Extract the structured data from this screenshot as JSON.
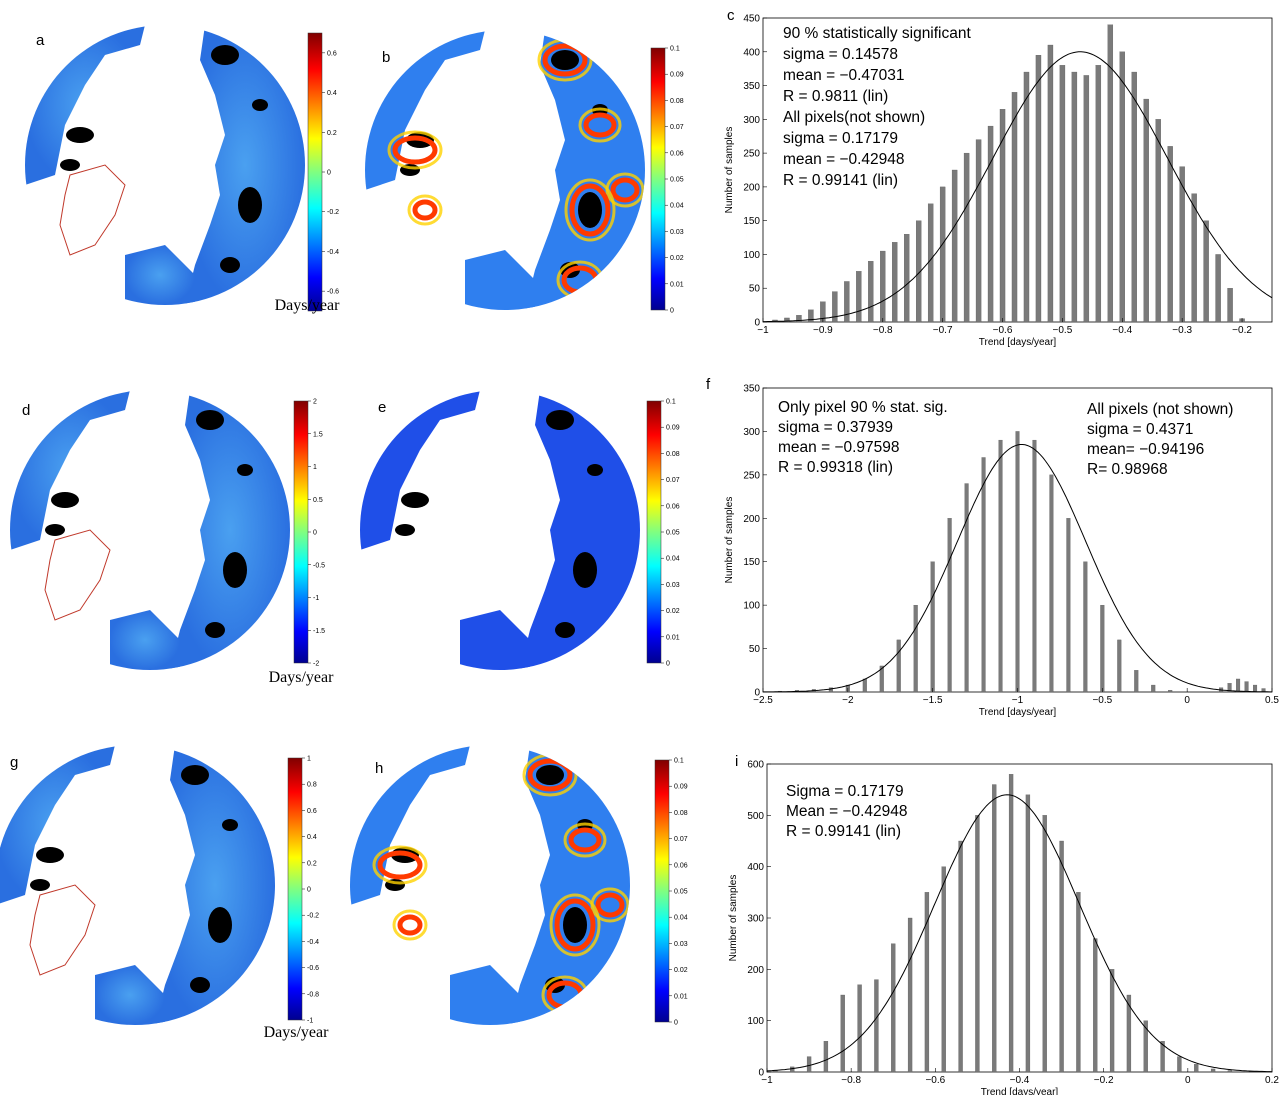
{
  "colors": {
    "bar": "#7a7a7a",
    "land": "#000000",
    "greenland_outline": "#c0392b",
    "ocean_blue": "#2a6fe0"
  },
  "panels": {
    "a": {
      "letter": "a",
      "cb_ticks": [
        "0.6",
        "0.4",
        "0.2",
        "0",
        "-0.2",
        "-0.4",
        "-0.6"
      ],
      "cb_range": [
        -0.7,
        0.7
      ],
      "unit": "Days/year"
    },
    "b": {
      "letter": "b",
      "cb_ticks": [
        "0.1",
        "0.09",
        "0.08",
        "0.07",
        "0.06",
        "0.05",
        "0.04",
        "0.03",
        "0.02",
        "0.01",
        "0"
      ],
      "cb_range": [
        0,
        0.1
      ]
    },
    "d": {
      "letter": "d",
      "cb_ticks": [
        "2",
        "1.5",
        "1",
        "0.5",
        "0",
        "-0.5",
        "-1",
        "-1.5",
        "-2"
      ],
      "cb_range": [
        -2,
        2
      ],
      "unit": "Days/year"
    },
    "e": {
      "letter": "e",
      "cb_ticks": [
        "0.1",
        "0.09",
        "0.08",
        "0.07",
        "0.06",
        "0.05",
        "0.04",
        "0.03",
        "0.02",
        "0.01",
        "0"
      ],
      "cb_range": [
        0,
        0.1
      ]
    },
    "g": {
      "letter": "g",
      "cb_ticks": [
        "1",
        "0.8",
        "0.6",
        "0.4",
        "0.2",
        "0",
        "-0.2",
        "-0.4",
        "-0.6",
        "-0.8",
        "-1"
      ],
      "cb_range": [
        -1,
        1
      ],
      "unit": "Days/year"
    },
    "h": {
      "letter": "h",
      "cb_ticks": [
        "0.1",
        "0.09",
        "0.08",
        "0.07",
        "0.06",
        "0.05",
        "0.04",
        "0.03",
        "0.02",
        "0.01",
        "0"
      ],
      "cb_range": [
        0,
        0.1
      ]
    }
  },
  "chart_data": [
    {
      "panel": "c",
      "type": "bar",
      "xlabel": "Trend [days/year]",
      "ylabel": "Number of samples",
      "xlim": [
        -1,
        -0.15
      ],
      "ylim": [
        0,
        450
      ],
      "xticks": [
        "-1",
        "-0.9",
        "-0.8",
        "-0.7",
        "-0.6",
        "-0.5",
        "-0.4",
        "-0.3",
        "-0.2"
      ],
      "yticks": [
        "0",
        "50",
        "100",
        "150",
        "200",
        "250",
        "300",
        "350",
        "400",
        "450"
      ],
      "bin_width": 0.0085,
      "x": [
        -0.98,
        -0.96,
        -0.94,
        -0.92,
        -0.9,
        -0.88,
        -0.86,
        -0.84,
        -0.82,
        -0.8,
        -0.78,
        -0.76,
        -0.74,
        -0.72,
        -0.7,
        -0.68,
        -0.66,
        -0.64,
        -0.62,
        -0.6,
        -0.58,
        -0.56,
        -0.54,
        -0.52,
        -0.5,
        -0.48,
        -0.46,
        -0.44,
        -0.42,
        -0.4,
        -0.38,
        -0.36,
        -0.34,
        -0.32,
        -0.3,
        -0.28,
        -0.26,
        -0.24,
        -0.22,
        -0.2
      ],
      "values": [
        3,
        6,
        10,
        18,
        30,
        45,
        60,
        75,
        90,
        105,
        118,
        130,
        150,
        175,
        200,
        225,
        250,
        270,
        290,
        315,
        340,
        370,
        395,
        410,
        380,
        370,
        365,
        380,
        440,
        400,
        370,
        330,
        300,
        260,
        230,
        190,
        150,
        100,
        50,
        5
      ],
      "fit_line": {
        "mean": -0.47031,
        "sigma": 0.14578,
        "peak": 400
      },
      "annotations": [
        {
          "text": "90 % statistically significant"
        },
        {
          "text": "sigma = 0.14578"
        },
        {
          "text": "mean = −0.47031"
        },
        {
          "text": "R = 0.9811  (lin)"
        },
        {
          "text": "All pixels(not shown)"
        },
        {
          "text": "sigma = 0.17179"
        },
        {
          "text": "mean = −0.42948"
        },
        {
          "text": "R = 0.99141  (lin)"
        }
      ]
    },
    {
      "panel": "f",
      "type": "bar",
      "xlabel": "Trend [days/year]",
      "ylabel": "Number of samples",
      "xlim": [
        -2.5,
        0.5
      ],
      "ylim": [
        0,
        350
      ],
      "xticks": [
        "-2.5",
        "-2",
        "-1.5",
        "-1",
        "-0.5",
        "0",
        "0.5"
      ],
      "yticks": [
        "0",
        "50",
        "100",
        "150",
        "200",
        "250",
        "300",
        "350"
      ],
      "bin_width": 0.022,
      "x": [
        -2.4,
        -2.3,
        -2.2,
        -2.1,
        -2.0,
        -1.9,
        -1.8,
        -1.7,
        -1.6,
        -1.5,
        -1.4,
        -1.3,
        -1.2,
        -1.1,
        -1.0,
        -0.9,
        -0.8,
        -0.7,
        -0.6,
        -0.5,
        -0.4,
        -0.3,
        -0.2,
        -0.1,
        0.2,
        0.25,
        0.3,
        0.35,
        0.4,
        0.45
      ],
      "values": [
        1,
        2,
        3,
        5,
        8,
        15,
        30,
        60,
        100,
        150,
        200,
        240,
        270,
        290,
        300,
        290,
        250,
        200,
        150,
        100,
        60,
        25,
        8,
        2,
        5,
        10,
        15,
        12,
        8,
        4
      ],
      "fit_line": {
        "mean": -0.97598,
        "sigma": 0.37939,
        "peak": 285
      },
      "annotations": [
        {
          "text": "Only pixel 90 % stat. sig."
        },
        {
          "text": "sigma = 0.37939"
        },
        {
          "text": "mean = −0.97598"
        },
        {
          "text": "R = 0.99318  (lin)"
        },
        {
          "text": "All pixels (not shown)"
        },
        {
          "text": "sigma = 0.4371"
        },
        {
          "text": "mean= −0.94196"
        },
        {
          "text": "R= 0.98968"
        }
      ]
    },
    {
      "panel": "i",
      "type": "bar",
      "xlabel": "Trend [days/year]",
      "ylabel": "Number of samples",
      "xlim": [
        -1,
        0.2
      ],
      "ylim": [
        0,
        600
      ],
      "xticks": [
        "-1",
        "-0.8",
        "-0.6",
        "-0.4",
        "-0.2",
        "0",
        "0.2"
      ],
      "yticks": [
        "0",
        "100",
        "200",
        "300",
        "400",
        "500",
        "600"
      ],
      "bin_width": 0.0095,
      "x": [
        -0.98,
        -0.94,
        -0.9,
        -0.86,
        -0.82,
        -0.78,
        -0.74,
        -0.7,
        -0.66,
        -0.62,
        -0.58,
        -0.54,
        -0.5,
        -0.46,
        -0.42,
        -0.38,
        -0.34,
        -0.3,
        -0.26,
        -0.22,
        -0.18,
        -0.14,
        -0.1,
        -0.06,
        -0.02,
        0.02,
        0.06,
        0.1,
        0.14,
        0.18
      ],
      "values": [
        3,
        10,
        30,
        60,
        150,
        170,
        180,
        250,
        300,
        350,
        400,
        450,
        500,
        560,
        580,
        540,
        500,
        450,
        350,
        260,
        200,
        150,
        100,
        60,
        30,
        15,
        6,
        3,
        1,
        0
      ],
      "fit_line": {
        "mean": -0.42948,
        "sigma": 0.17179,
        "peak": 540
      },
      "annotations": [
        {
          "text": "Sigma = 0.17179"
        },
        {
          "text": "Mean = −0.42948"
        },
        {
          "text": "R = 0.99141  (lin)"
        }
      ]
    }
  ]
}
